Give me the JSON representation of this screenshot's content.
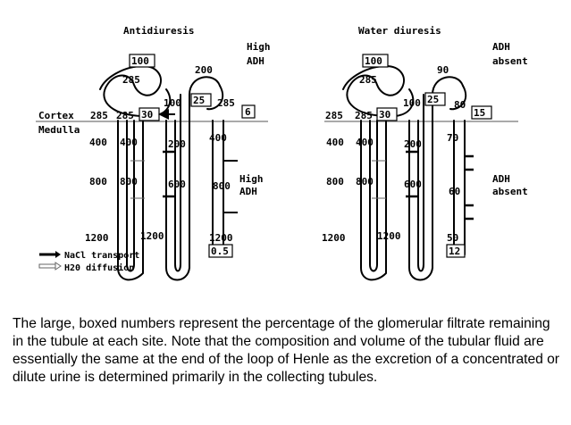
{
  "panels": {
    "left": {
      "title": "Antidiuresis",
      "adh_top": [
        "High",
        "ADH"
      ],
      "adh_mid": [
        "High",
        "ADH"
      ],
      "zone_cortex": "Cortex",
      "zone_medulla": "Medulla",
      "osm_pct100": "100",
      "osm_285_prox": "285",
      "osm_200_dist": "200",
      "osm_100_dist": "100",
      "pct_25": "25",
      "osm_285_ct": "285",
      "pct_6": "6",
      "osm_285_a": "285",
      "osm_285_b": "285",
      "pct_30": "30",
      "osm_400_a": "400",
      "osm_400_b": "400",
      "osm_200_asc": "200",
      "osm_400_cd": "400",
      "osm_800_a": "800",
      "osm_800_b": "800",
      "osm_600": "600",
      "osm_800_cd": "800",
      "osm_1200_a": "1200",
      "osm_1200_b": "1200",
      "osm_1200_cd": "1200",
      "pct_final": "0.5"
    },
    "right": {
      "title": "Water diuresis",
      "adh_top": [
        "ADH",
        "absent"
      ],
      "adh_mid": [
        "ADH",
        "absent"
      ],
      "osm_pct100": "100",
      "osm_285_prox": "285",
      "osm_90": "90",
      "osm_100_dist": "100",
      "pct_25": "25",
      "osm_80": "80",
      "pct_15": "15",
      "osm_285_a": "285",
      "osm_285_b": "285",
      "pct_30": "30",
      "osm_70": "70",
      "osm_400_a": "400",
      "osm_400_b": "400",
      "osm_200_asc": "200",
      "osm_800_a": "800",
      "osm_800_b": "800",
      "osm_600": "600",
      "osm_60": "60",
      "osm_1200_a": "1200",
      "osm_1200_b": "1200",
      "osm_50": "50",
      "pct_final": "12"
    }
  },
  "legend": {
    "nacl": "NaCl transport",
    "h2o": "H20 diffusion"
  },
  "caption": "The large, boxed numbers represent the percentage of the glomerular filtrate remaining in the tubule at each site. Note that the composition and volume of the tubular fluid are essentially the same at the end of the loop of Henle as the excretion of a concentrated or dilute urine is determined primarily in the collecting tubules."
}
